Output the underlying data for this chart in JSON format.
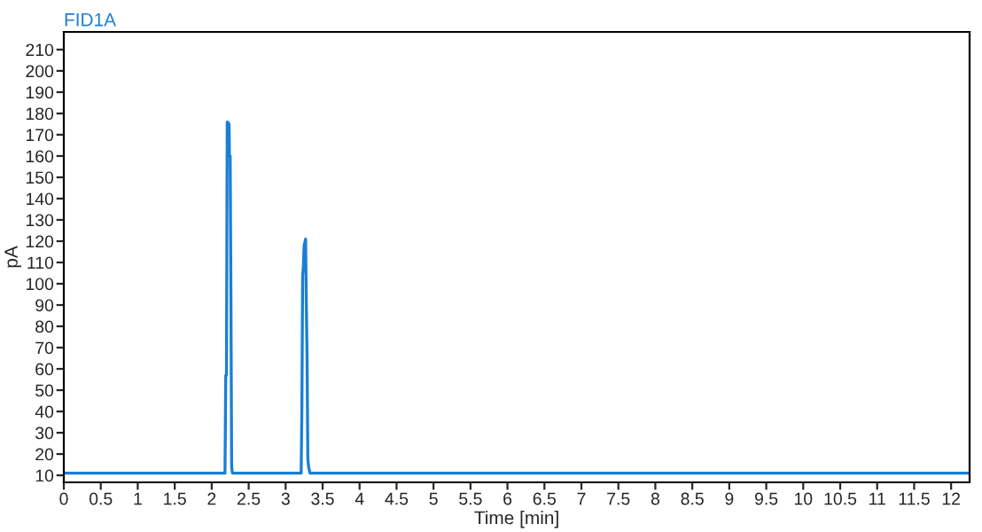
{
  "chart_data": {
    "type": "line",
    "title": "FID1A",
    "xlabel": "Time [min]",
    "ylabel": "pA",
    "series": [
      {
        "color": "#1a7fd4",
        "x": [
          0,
          2.18,
          2.19,
          2.2,
          2.21,
          2.215,
          2.235,
          2.24,
          2.25,
          2.26,
          2.27,
          2.28,
          2.3,
          3.21,
          3.22,
          3.23,
          3.24,
          3.25,
          3.27,
          3.28,
          3.29,
          3.3,
          3.31,
          3.33,
          3.35,
          12.25
        ],
        "values": [
          11,
          11,
          57,
          57,
          176,
          176,
          175,
          160,
          160,
          95,
          14,
          11,
          11,
          11,
          42,
          104,
          108,
          118,
          121,
          90,
          65,
          18,
          14,
          11,
          11,
          11
        ]
      }
    ],
    "xlim": [
      0,
      12.25
    ],
    "ylim": [
      6.7,
      218.3
    ],
    "xticks": [
      0,
      0.5,
      1,
      1.5,
      2,
      2.5,
      3,
      3.5,
      4,
      4.5,
      5,
      5.5,
      6,
      6.5,
      7,
      7.5,
      8,
      8.5,
      9,
      9.5,
      10,
      10.5,
      11,
      11.5,
      12
    ],
    "yticks": [
      10,
      20,
      30,
      40,
      50,
      60,
      70,
      80,
      90,
      100,
      110,
      120,
      130,
      140,
      150,
      160,
      170,
      180,
      190,
      200,
      210
    ],
    "grid": false,
    "legend": false,
    "marker": "none",
    "line_style": "solid"
  }
}
